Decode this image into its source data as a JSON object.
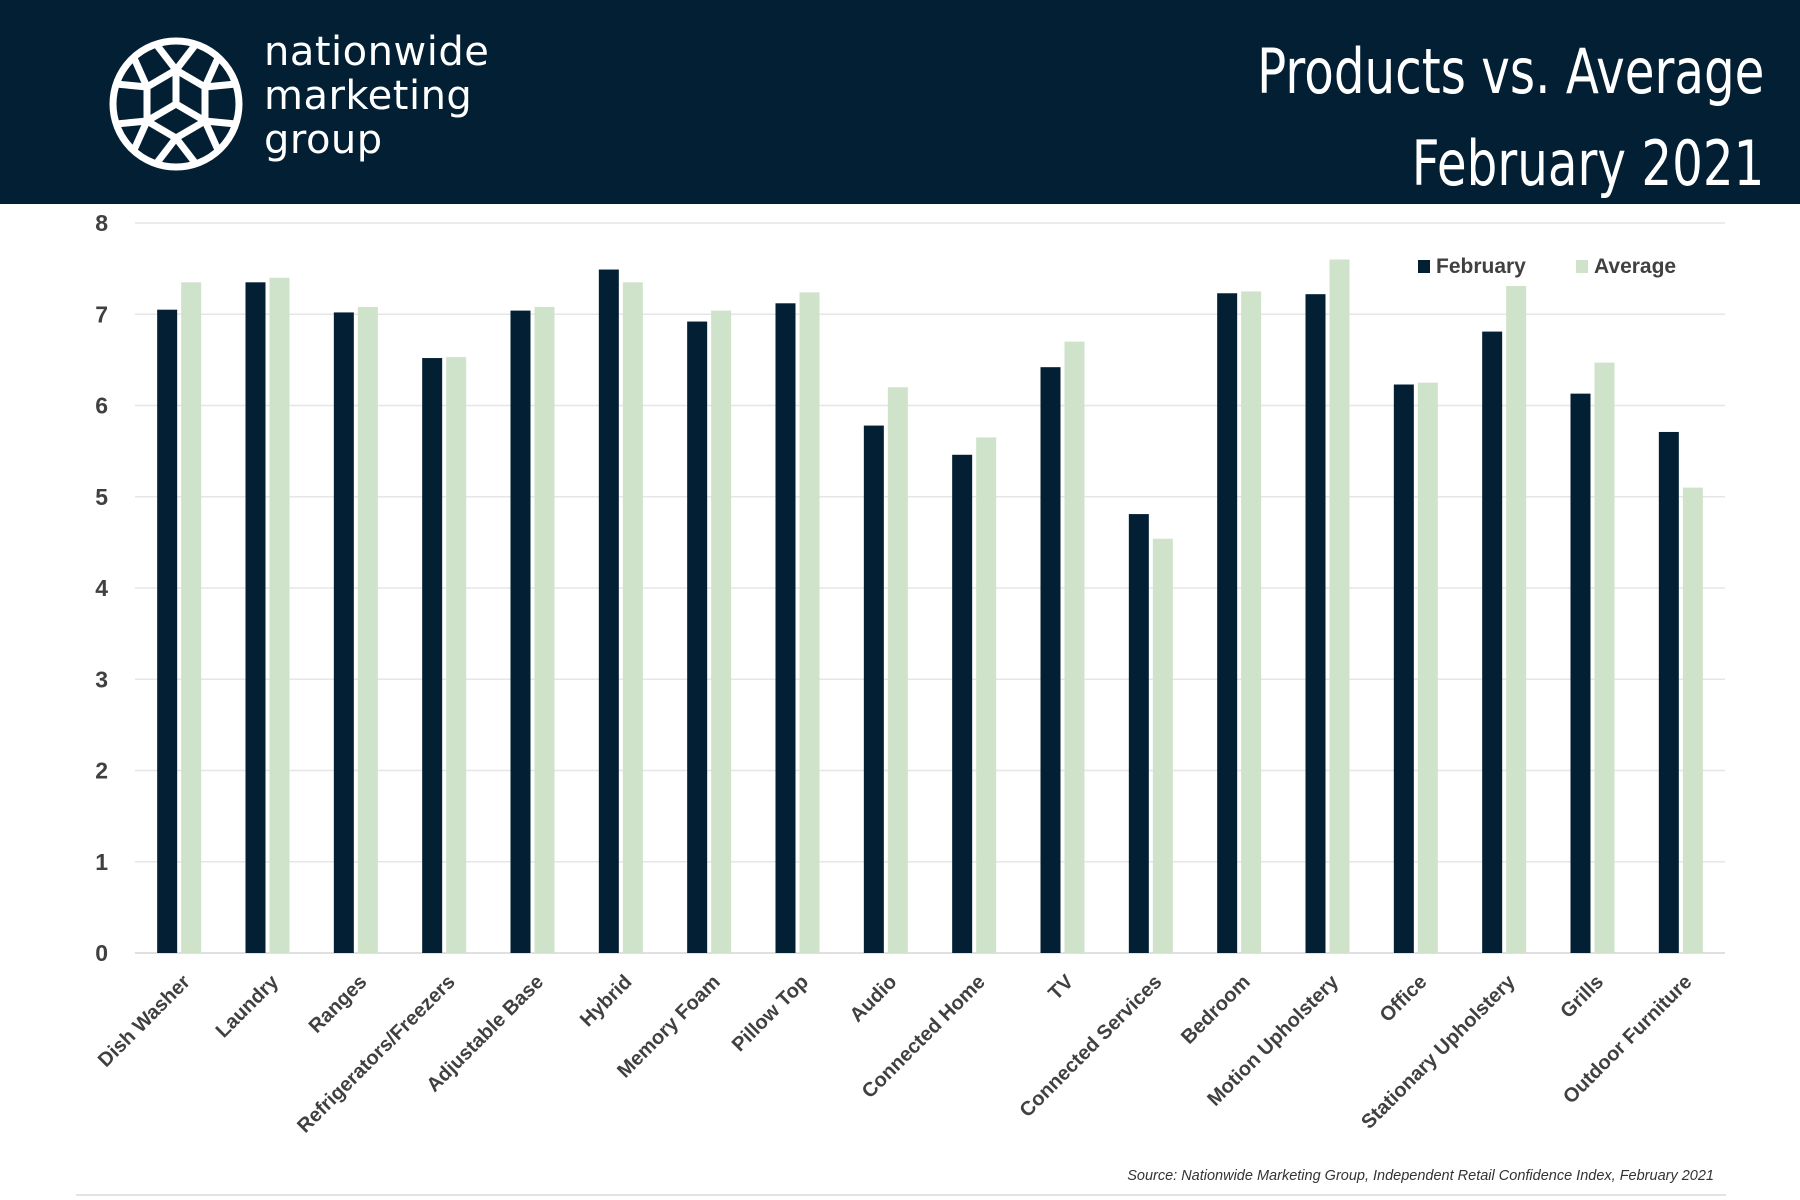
{
  "header": {
    "logo_lines": [
      "nationwide",
      "marketing",
      "group"
    ],
    "title_lines": [
      "Products vs. Average",
      "February 2021"
    ]
  },
  "chart_data": {
    "type": "bar",
    "categories": [
      "Dish Washer",
      "Laundry",
      "Ranges",
      "Refrigerators/Freezers",
      "Adjustable Base",
      "Hybrid",
      "Memory Foam",
      "Pillow Top",
      "Audio",
      "Connected Home",
      "TV",
      "Connected Services",
      "Bedroom",
      "Motion Upholstery",
      "Office",
      "Stationary Upholstery",
      "Grills",
      "Outdoor Furniture"
    ],
    "series": [
      {
        "name": "February",
        "color": "#031f33",
        "values": [
          7.05,
          7.35,
          7.02,
          6.52,
          7.04,
          7.49,
          6.92,
          7.12,
          5.78,
          5.46,
          6.42,
          4.81,
          7.23,
          7.22,
          6.23,
          6.81,
          6.13,
          5.71
        ]
      },
      {
        "name": "Average",
        "color": "#cfe2ca",
        "values": [
          7.35,
          7.4,
          7.08,
          6.53,
          7.08,
          7.35,
          7.04,
          7.24,
          6.2,
          5.65,
          6.7,
          4.54,
          7.25,
          7.6,
          6.25,
          7.31,
          6.47,
          5.1
        ]
      }
    ],
    "yticks": [
      "0",
      "1",
      "2",
      "3",
      "4",
      "5",
      "6",
      "7",
      "8"
    ],
    "ylim": [
      0,
      8
    ],
    "grid": true,
    "legend": "top-right"
  },
  "source": "Source: Nationwide Marketing Group, Independent Retail Confidence Index, February 2021"
}
